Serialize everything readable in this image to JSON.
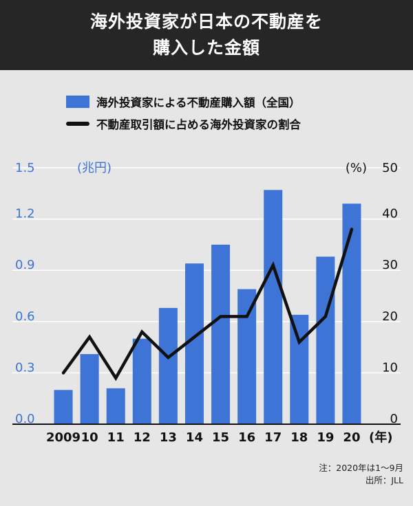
{
  "header": {
    "title_line1": "海外投資家が日本の不動産を",
    "title_line2": "購入した金額"
  },
  "legend": {
    "bar_label": "海外投資家による不動産購入額（全国）",
    "line_label": "不動産取引額に占める海外投資家の割合"
  },
  "notes": {
    "note1": "注：2020年は1〜9月",
    "source": "出所：JLL"
  },
  "colors": {
    "bar": "#3d74d6",
    "line": "#111111",
    "grid": "#ffffff"
  },
  "chart_data": {
    "type": "bar",
    "categories": [
      "2009",
      "10",
      "11",
      "12",
      "13",
      "14",
      "15",
      "16",
      "17",
      "18",
      "19",
      "20"
    ],
    "x_unit": "(年)",
    "series": [
      {
        "type": "bar",
        "axis": "left",
        "values": [
          0.2,
          0.41,
          0.21,
          0.5,
          0.68,
          0.94,
          1.05,
          0.79,
          1.37,
          0.64,
          0.98,
          1.29
        ]
      },
      {
        "type": "line",
        "axis": "right",
        "values": [
          10,
          17,
          9,
          18,
          13,
          17,
          21,
          21,
          31,
          16,
          21,
          38
        ]
      }
    ],
    "left_axis": {
      "unit_label": "(兆円)",
      "range": [
        0,
        1.5
      ],
      "ticks": [
        "0.0",
        "0.3",
        "0.6",
        "0.9",
        "1.2",
        "1.5"
      ],
      "tick_values": [
        0,
        0.3,
        0.6,
        0.9,
        1.2,
        1.5
      ]
    },
    "right_axis": {
      "unit_label": "(%)",
      "range": [
        0,
        50
      ],
      "ticks": [
        "0",
        "10",
        "20",
        "30",
        "40",
        "50"
      ],
      "tick_values": [
        0,
        10,
        20,
        30,
        40,
        50
      ]
    },
    "grid": true
  }
}
